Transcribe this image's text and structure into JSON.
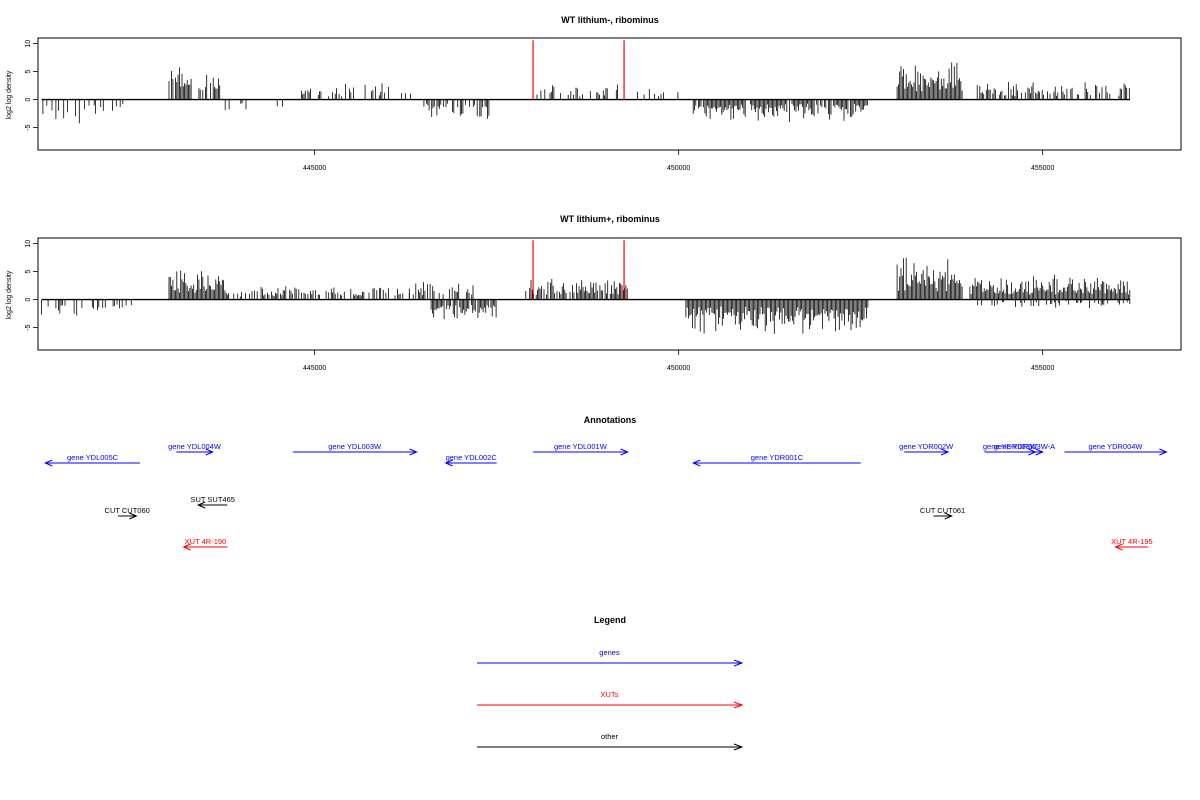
{
  "panels": [
    {
      "title": "WT lithium-, ribominus",
      "ylabel": "log2 log density"
    },
    {
      "title": "WT lithium+, ribominus",
      "ylabel": "log2 log density"
    }
  ],
  "annotations": {
    "title": "Annotations"
  },
  "legend": {
    "title": "Legend",
    "items": [
      {
        "label": "genes",
        "color": "#0000ff"
      },
      {
        "label": "XUTs",
        "color": "#ff0000"
      },
      {
        "label": "other",
        "color": "#000000"
      }
    ]
  },
  "chart_data": [
    {
      "type": "bar",
      "title": "WT lithium-, ribominus",
      "xlabel": "",
      "ylabel": "log2 log density",
      "xlim": [
        441200,
        456900
      ],
      "ylim": [
        -9,
        11
      ],
      "xticks": [
        445000,
        450000,
        455000
      ],
      "yticks": [
        -5,
        0,
        5,
        10
      ],
      "grid": false,
      "highlight_positions": [
        448000,
        449250
      ],
      "highlight_color": "#ff0000",
      "segments": [
        {
          "start": 441250,
          "end": 441900,
          "amp": -3,
          "density": 0.25
        },
        {
          "start": 441900,
          "end": 442600,
          "amp": -2.5,
          "density": 0.18
        },
        {
          "start": 443000,
          "end": 443700,
          "amp": 4.2,
          "density": 0.8
        },
        {
          "start": 443700,
          "end": 444700,
          "amp": -1.5,
          "density": 0.1
        },
        {
          "start": 444800,
          "end": 446400,
          "amp": 2.2,
          "density": 0.35
        },
        {
          "start": 446500,
          "end": 447400,
          "amp": -2.5,
          "density": 0.6
        },
        {
          "start": 448000,
          "end": 449200,
          "amp": 2,
          "density": 0.3
        },
        {
          "start": 449400,
          "end": 450000,
          "amp": 1.5,
          "density": 0.12
        },
        {
          "start": 450200,
          "end": 452600,
          "amp": -2.8,
          "density": 0.9
        },
        {
          "start": 453000,
          "end": 453900,
          "amp": 5.5,
          "density": 1.0
        },
        {
          "start": 454100,
          "end": 456200,
          "amp": 2.4,
          "density": 0.6
        }
      ]
    },
    {
      "type": "bar",
      "title": "WT lithium+, ribominus",
      "xlabel": "",
      "ylabel": "log2 log density",
      "xlim": [
        441200,
        456900
      ],
      "ylim": [
        -9,
        11
      ],
      "xticks": [
        445000,
        450000,
        455000
      ],
      "yticks": [
        -5,
        0,
        5,
        10
      ],
      "grid": false,
      "highlight_positions": [
        448000,
        449250
      ],
      "highlight_color": "#ff0000",
      "segments": [
        {
          "start": 441250,
          "end": 442500,
          "amp": -2.5,
          "density": 0.35
        },
        {
          "start": 443000,
          "end": 443800,
          "amp": 3.8,
          "density": 1.0
        },
        {
          "start": 443800,
          "end": 446300,
          "amp": 1.8,
          "density": 0.55
        },
        {
          "start": 446300,
          "end": 447200,
          "amp": 2.6,
          "density": 0.55
        },
        {
          "start": 446600,
          "end": 447500,
          "amp": -3,
          "density": 0.9
        },
        {
          "start": 447900,
          "end": 449300,
          "amp": 2.8,
          "density": 0.8
        },
        {
          "start": 450100,
          "end": 452600,
          "amp": -4.5,
          "density": 1.0
        },
        {
          "start": 453000,
          "end": 453900,
          "amp": 5.5,
          "density": 1.0
        },
        {
          "start": 454000,
          "end": 456200,
          "amp": 3.2,
          "density": 1.0
        },
        {
          "start": 454000,
          "end": 456200,
          "amp": -1.2,
          "density": 0.3
        }
      ]
    },
    {
      "type": "other",
      "title": "Annotations",
      "xlim": [
        441200,
        456900
      ],
      "features": [
        {
          "label": "gene YDL005C",
          "start": 441300,
          "end": 442600,
          "strand": "-",
          "class": "gene",
          "row": 1
        },
        {
          "label": "gene YDL004W",
          "start": 443100,
          "end": 443600,
          "strand": "+",
          "class": "gene",
          "row": 0
        },
        {
          "label": "gene YDL003W",
          "start": 444700,
          "end": 446400,
          "strand": "+",
          "class": "gene",
          "row": 0
        },
        {
          "label": "gene YDL002C",
          "start": 446800,
          "end": 447500,
          "strand": "-",
          "class": "gene",
          "row": 1
        },
        {
          "label": "gene YDL001W",
          "start": 448000,
          "end": 449300,
          "strand": "+",
          "class": "gene",
          "row": 0
        },
        {
          "label": "gene YDR001C",
          "start": 450200,
          "end": 452500,
          "strand": "-",
          "class": "gene",
          "row": 1
        },
        {
          "label": "gene YDR002W",
          "start": 453100,
          "end": 453700,
          "strand": "+",
          "class": "gene",
          "row": 0
        },
        {
          "label": "gene YDR003W",
          "start": 454200,
          "end": 454900,
          "strand": "+",
          "class": "gene",
          "row": 0
        },
        {
          "label": "gene YDR003W-A",
          "start": 454500,
          "end": 455000,
          "strand": "+",
          "class": "gene",
          "row": 0
        },
        {
          "label": "gene YDR004W",
          "start": 455300,
          "end": 456700,
          "strand": "+",
          "class": "gene",
          "row": 0
        },
        {
          "label": "SUT SUT465",
          "start": 443400,
          "end": 443800,
          "strand": "-",
          "class": "other",
          "row": 2
        },
        {
          "label": "CUT CUT060",
          "start": 442300,
          "end": 442550,
          "strand": "+",
          "class": "other",
          "row": 3
        },
        {
          "label": "CUT CUT061",
          "start": 453500,
          "end": 453750,
          "strand": "+",
          "class": "other",
          "row": 3
        },
        {
          "label": "XUT 4R-190",
          "start": 443200,
          "end": 443800,
          "strand": "-",
          "class": "xut",
          "row": 4
        },
        {
          "label": "XUT 4R-195",
          "start": 456000,
          "end": 456450,
          "strand": "-",
          "class": "xut",
          "row": 4
        }
      ]
    }
  ]
}
